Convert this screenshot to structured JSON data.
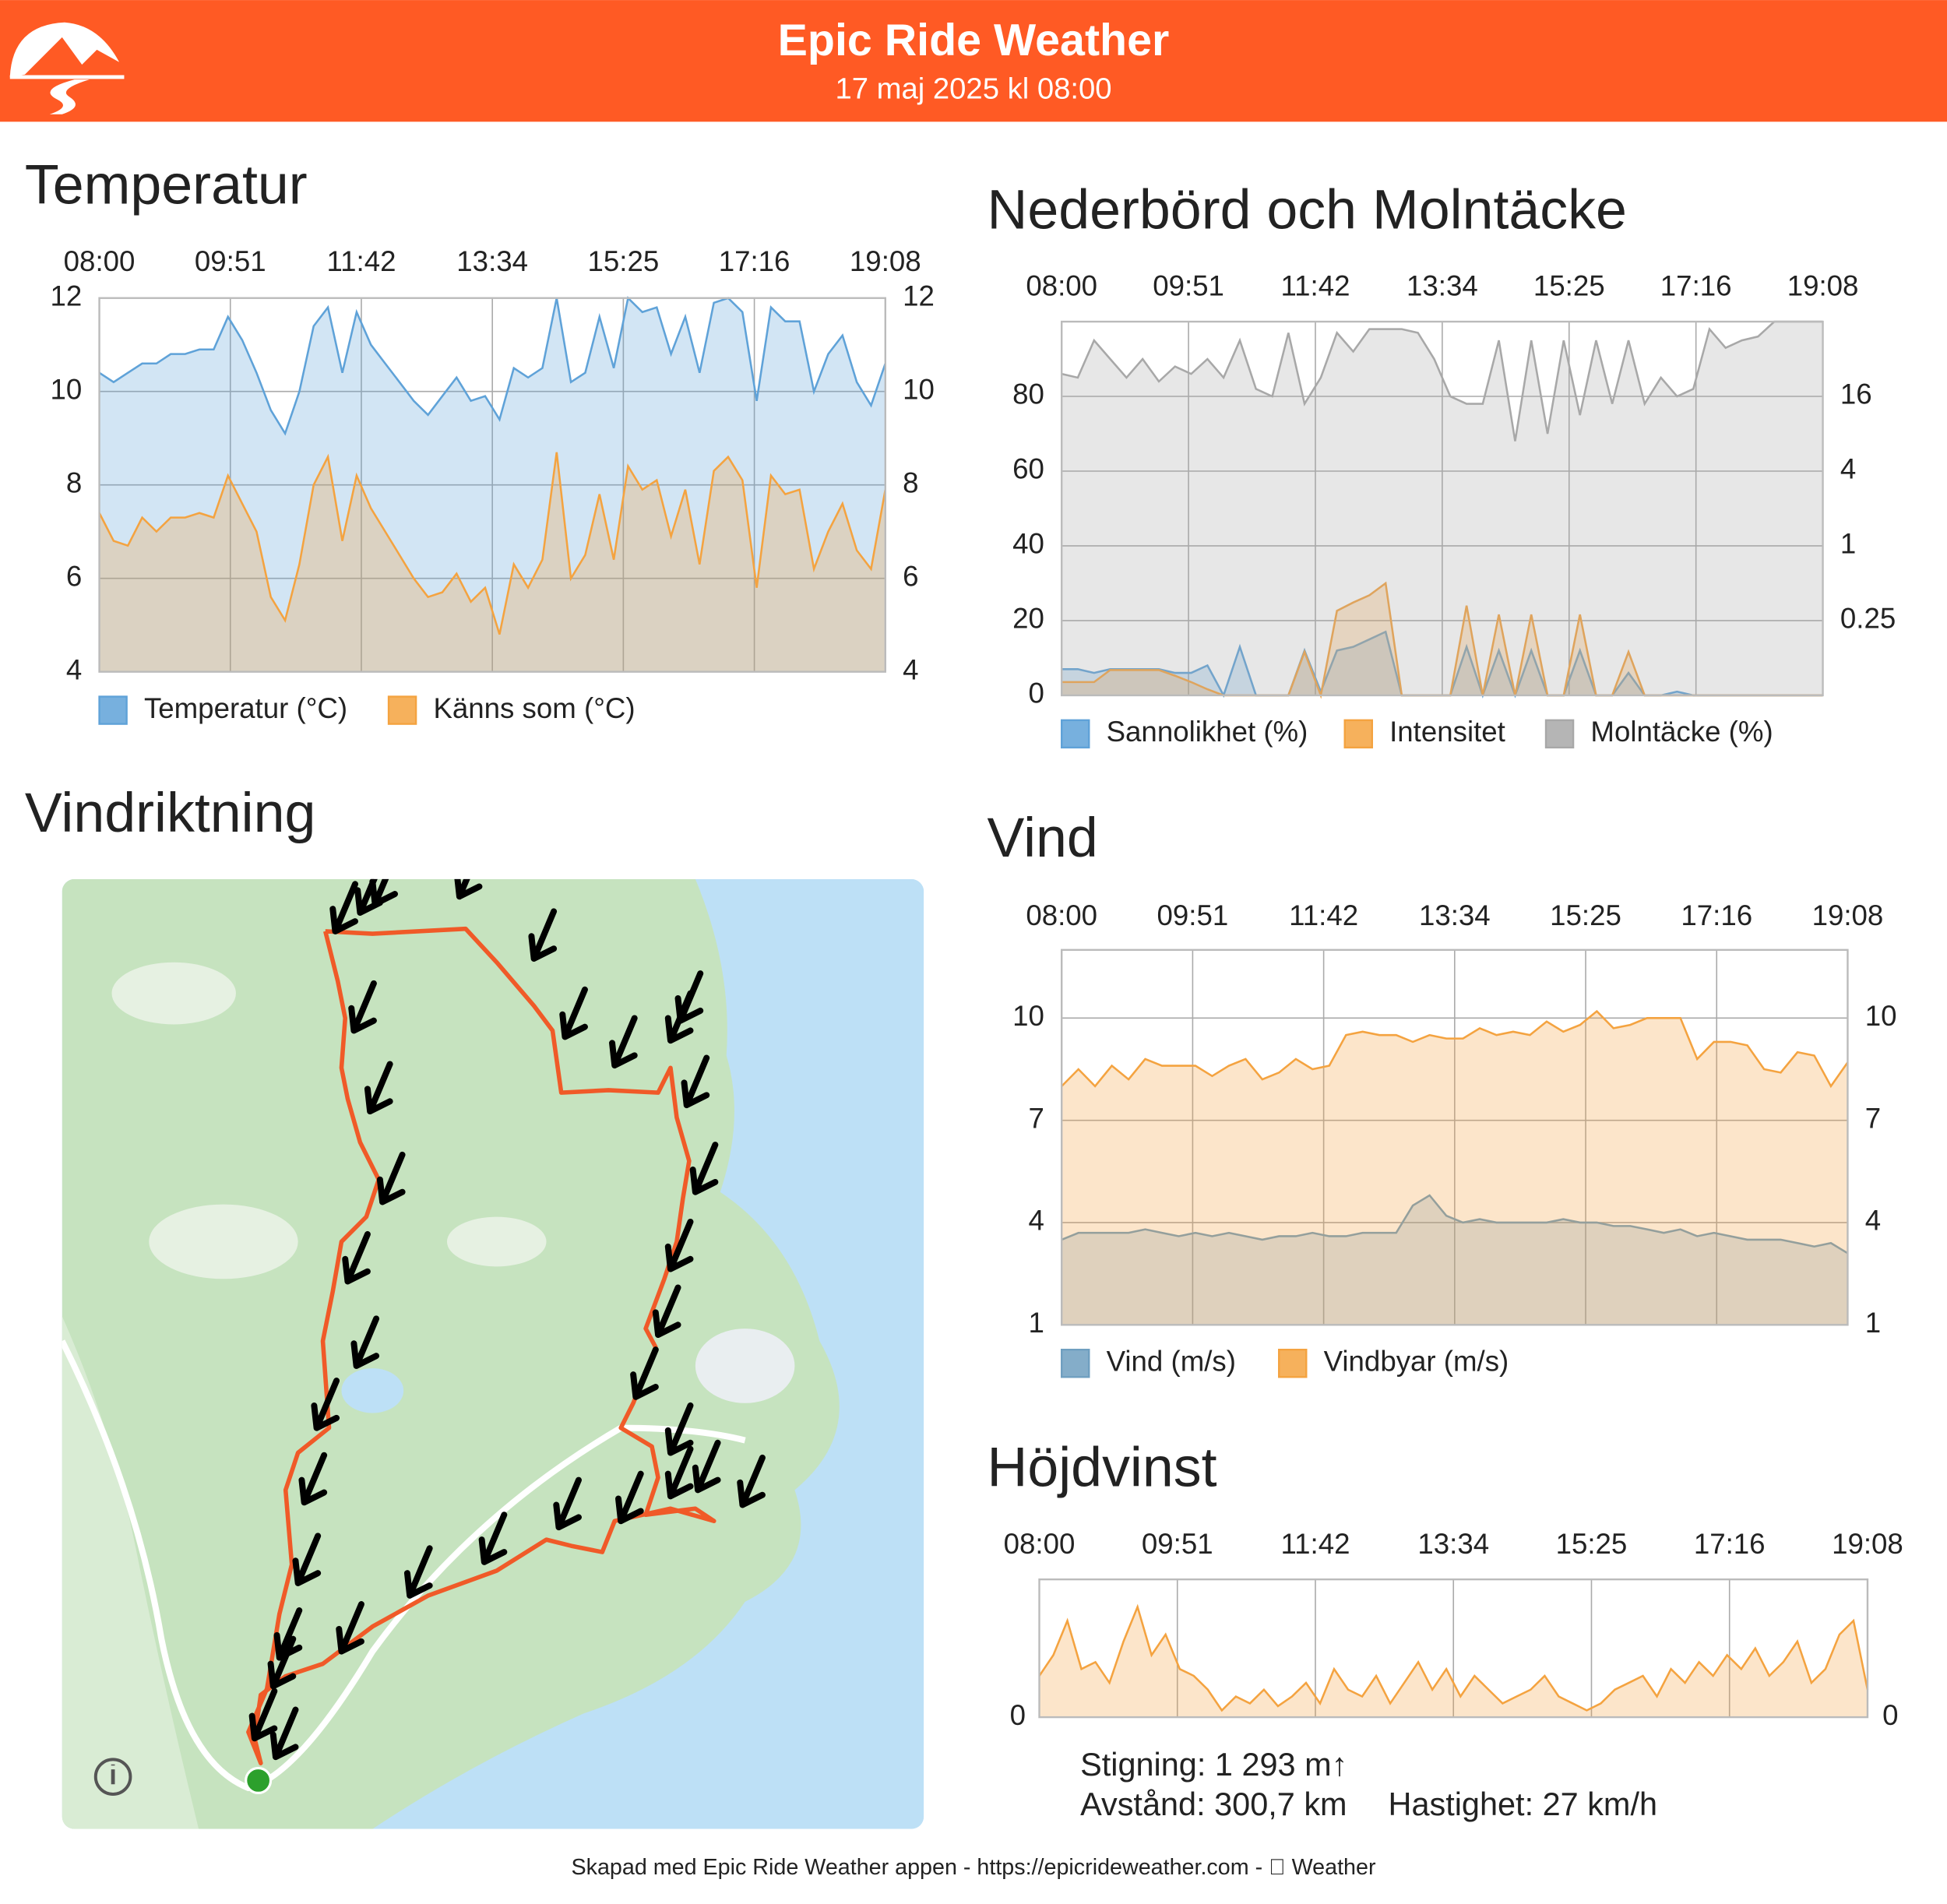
{
  "header": {
    "title": "Epic Ride Weather",
    "subtitle": "17 maj 2025 kl 08:00"
  },
  "map": {
    "title": "Vindriktning"
  },
  "stats": {
    "climb": "Stigning: 1 293 m↑",
    "distance": "Avstånd: 300,7 km",
    "speed": "Hastighet: 27 km/h"
  },
  "footer": "Skapad med Epic Ride Weather appen - https://epicrideweather.com -  Weather",
  "chart_data": [
    {
      "type": "area",
      "title": "Temperatur",
      "time_labels": [
        "08:00",
        "09:51",
        "11:42",
        "13:34",
        "15:25",
        "17:16",
        "19:08"
      ],
      "ylim": [
        4,
        12
      ],
      "yticks": [
        4,
        6,
        8,
        10,
        12
      ],
      "grid": true,
      "series": [
        {
          "name": "Temperatur (°C)",
          "color": "#5fa2d8",
          "values": [
            10.4,
            10.2,
            10.4,
            10.6,
            10.6,
            10.8,
            10.8,
            10.9,
            10.9,
            11.6,
            11.1,
            10.4,
            9.6,
            9.1,
            10.0,
            11.4,
            11.8,
            10.4,
            11.7,
            11.0,
            10.6,
            10.2,
            9.8,
            9.5,
            9.9,
            10.3,
            9.8,
            9.9,
            9.4,
            10.5,
            10.3,
            10.5,
            12.0,
            10.2,
            10.4,
            11.6,
            10.5,
            12.0,
            11.7,
            11.8,
            10.8,
            11.6,
            10.4,
            11.9,
            12.0,
            11.7,
            9.8,
            11.8,
            11.5,
            11.5,
            10.0,
            10.8,
            11.2,
            10.2,
            9.7,
            10.6
          ]
        },
        {
          "name": "Känns som (°C)",
          "color": "#f4a340",
          "values": [
            7.4,
            6.8,
            6.7,
            7.3,
            7.0,
            7.3,
            7.3,
            7.4,
            7.3,
            8.2,
            7.6,
            7.0,
            5.6,
            5.1,
            6.3,
            8.0,
            8.6,
            6.8,
            8.2,
            7.5,
            7.0,
            6.5,
            6.0,
            5.6,
            5.7,
            6.1,
            5.5,
            5.8,
            4.8,
            6.3,
            5.8,
            6.4,
            8.7,
            6.0,
            6.5,
            7.8,
            6.4,
            8.4,
            7.9,
            8.1,
            6.9,
            7.9,
            6.3,
            8.3,
            8.6,
            8.1,
            5.8,
            8.2,
            7.8,
            7.9,
            6.2,
            7.0,
            7.6,
            6.6,
            6.2,
            7.9
          ]
        }
      ]
    },
    {
      "type": "area",
      "title": "Nederbörd och Molntäcke",
      "time_labels": [
        "08:00",
        "09:51",
        "11:42",
        "13:34",
        "15:25",
        "17:16",
        "19:08"
      ],
      "ylim": [
        0,
        100
      ],
      "yticks": [
        0,
        20,
        40,
        60,
        80
      ],
      "grid": true,
      "y2lim": [
        0.0625,
        64
      ],
      "y2ticks": [
        0.25,
        1,
        4,
        16
      ],
      "y2log": true,
      "series": [
        {
          "name": "Sannolikhet (%)",
          "color": "#5fa2d8",
          "values": [
            7,
            7,
            6,
            7,
            7,
            7,
            7,
            6,
            6,
            8,
            0,
            13,
            0,
            0,
            0,
            12,
            1,
            12,
            13,
            15,
            17,
            0,
            0,
            0,
            0,
            13,
            0,
            12,
            0,
            12,
            0,
            0,
            12,
            0,
            0,
            6,
            0,
            0,
            1,
            0,
            0,
            0,
            0,
            0,
            0,
            0,
            0,
            0
          ]
        },
        {
          "name": "Intensitet",
          "color": "#f4a340",
          "axis": "y2",
          "values": [
            0.08,
            0.08,
            0.08,
            0.1,
            0.1,
            0.1,
            0.1,
            0.09,
            0.08,
            0.07,
            0.0625,
            0.0625,
            0.0625,
            0.0625,
            0.0625,
            0.14,
            0.0625,
            0.3,
            0.35,
            0.4,
            0.5,
            0.0625,
            0.0625,
            0.0625,
            0.0625,
            0.33,
            0.0625,
            0.28,
            0.0625,
            0.28,
            0.0625,
            0.0625,
            0.28,
            0.0625,
            0.0625,
            0.14,
            0.0625,
            0.0625,
            0.0625,
            0.0625,
            0.0625,
            0.0625,
            0.0625,
            0.0625,
            0.0625,
            0.0625,
            0.0625,
            0.0625
          ]
        },
        {
          "name": "Molntäcke (%)",
          "color": "#a8a8a8",
          "values": [
            86,
            85,
            95,
            90,
            85,
            90,
            84,
            88,
            86,
            90,
            85,
            95,
            82,
            80,
            97,
            78,
            85,
            97,
            92,
            98,
            98,
            98,
            97,
            90,
            80,
            78,
            78,
            95,
            68,
            95,
            70,
            95,
            75,
            95,
            78,
            95,
            78,
            85,
            80,
            82,
            98,
            93,
            95,
            96,
            100,
            100,
            100,
            100
          ]
        }
      ]
    },
    {
      "type": "area",
      "title": "Vind",
      "time_labels": [
        "08:00",
        "09:51",
        "11:42",
        "13:34",
        "15:25",
        "17:16",
        "19:08"
      ],
      "ylim": [
        1,
        12
      ],
      "yticks": [
        1,
        4,
        7,
        10
      ],
      "grid": true,
      "series": [
        {
          "name": "Vind (m/s)",
          "color": "#6f9fc0",
          "values": [
            3.5,
            3.7,
            3.7,
            3.7,
            3.7,
            3.8,
            3.7,
            3.6,
            3.7,
            3.6,
            3.7,
            3.6,
            3.5,
            3.6,
            3.6,
            3.7,
            3.6,
            3.6,
            3.7,
            3.7,
            3.7,
            4.5,
            4.8,
            4.2,
            4.0,
            4.1,
            4.0,
            4.0,
            4.0,
            4.0,
            4.1,
            4.0,
            4.0,
            3.9,
            3.9,
            3.8,
            3.7,
            3.8,
            3.6,
            3.7,
            3.6,
            3.5,
            3.5,
            3.5,
            3.4,
            3.3,
            3.4,
            3.1
          ]
        },
        {
          "name": "Vindbyar (m/s)",
          "color": "#f4a340",
          "values": [
            8,
            8.5,
            8,
            8.6,
            8.2,
            8.8,
            8.6,
            8.6,
            8.6,
            8.3,
            8.6,
            8.8,
            8.2,
            8.4,
            8.8,
            8.5,
            8.6,
            9.5,
            9.6,
            9.5,
            9.5,
            9.3,
            9.5,
            9.4,
            9.4,
            9.7,
            9.5,
            9.6,
            9.5,
            9.9,
            9.6,
            9.8,
            10.2,
            9.7,
            9.8,
            10.0,
            10.0,
            10.0,
            8.8,
            9.3,
            9.3,
            9.2,
            8.5,
            8.4,
            9.0,
            8.9,
            8.0,
            8.7
          ]
        }
      ]
    },
    {
      "type": "area",
      "title": "Höjdvinst",
      "time_labels": [
        "08:00",
        "09:51",
        "11:42",
        "13:34",
        "15:25",
        "17:16",
        "19:08"
      ],
      "ylim": [
        0,
        100
      ],
      "yticks": [
        0
      ],
      "grid": true,
      "series": [
        {
          "color": "#f4a340",
          "values": [
            30,
            45,
            70,
            35,
            40,
            25,
            55,
            80,
            45,
            60,
            35,
            30,
            20,
            5,
            15,
            10,
            20,
            8,
            15,
            25,
            10,
            35,
            20,
            15,
            30,
            10,
            25,
            40,
            20,
            35,
            15,
            30,
            20,
            10,
            15,
            20,
            30,
            15,
            10,
            5,
            10,
            20,
            25,
            30,
            15,
            35,
            25,
            40,
            30,
            45,
            35,
            50,
            30,
            40,
            55,
            25,
            35,
            60,
            70,
            20
          ]
        }
      ]
    }
  ]
}
